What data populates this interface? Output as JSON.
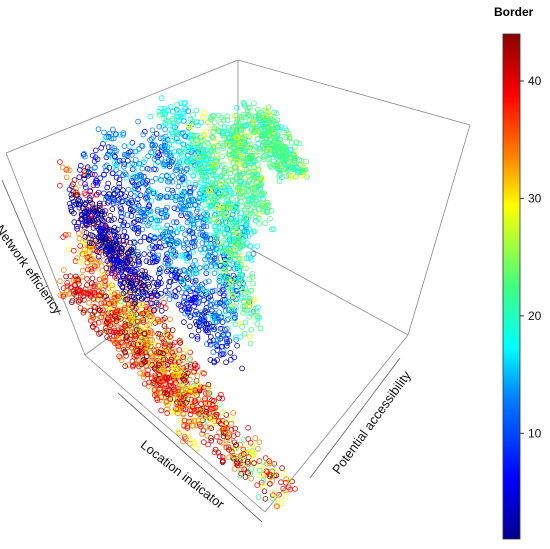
{
  "chart_data": {
    "type": "scatter",
    "title": "",
    "xlabel": "Location indicator",
    "ylabel": "Potential accessibility",
    "zlabel": "Network efficiency",
    "color_variable": "Border",
    "colorbar": {
      "title": "Border",
      "ticks": [
        10,
        20,
        30,
        40
      ],
      "range": [
        1,
        44
      ],
      "colormap": [
        "#00008b",
        "#0000ff",
        "#0080ff",
        "#00ffff",
        "#40ff80",
        "#ffff00",
        "#ff8000",
        "#ff0000",
        "#8b0000"
      ]
    },
    "axes_box": "3D wireframe box, no grid",
    "marker": "open circle",
    "series_description": "dense point cloud colored by Border value"
  },
  "labels": {
    "network": "Network efficiency",
    "location": "Location indicator",
    "potential": "Potential accessibility",
    "legend_title": "Border"
  }
}
